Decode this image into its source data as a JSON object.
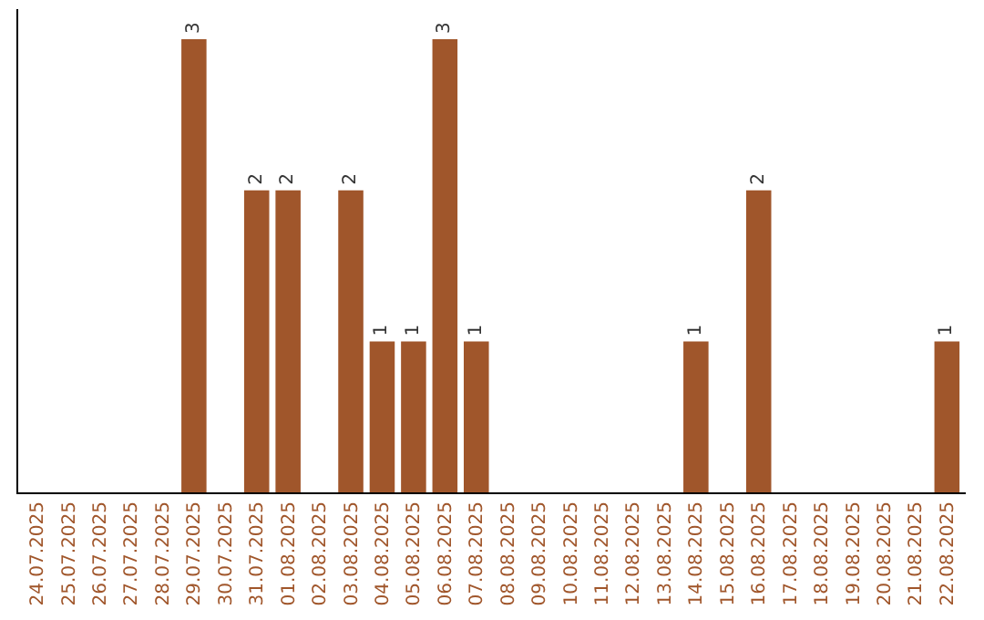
{
  "chart_data": {
    "type": "bar",
    "categories": [
      "24.07.2025",
      "25.07.2025",
      "26.07.2025",
      "27.07.2025",
      "28.07.2025",
      "29.07.2025",
      "30.07.2025",
      "31.07.2025",
      "01.08.2025",
      "02.08.2025",
      "03.08.2025",
      "04.08.2025",
      "05.08.2025",
      "06.08.2025",
      "07.08.2025",
      "08.08.2025",
      "09.08.2025",
      "10.08.2025",
      "11.08.2025",
      "12.08.2025",
      "13.08.2025",
      "14.08.2025",
      "15.08.2025",
      "16.08.2025",
      "17.08.2025",
      "18.08.2025",
      "19.08.2025",
      "20.08.2025",
      "21.08.2025",
      "22.08.2025"
    ],
    "values": [
      0,
      0,
      0,
      0,
      0,
      3,
      0,
      2,
      2,
      0,
      2,
      1,
      1,
      3,
      1,
      0,
      0,
      0,
      0,
      0,
      0,
      1,
      0,
      2,
      0,
      0,
      0,
      0,
      0,
      1
    ],
    "value_labels": [
      null,
      null,
      null,
      null,
      null,
      "3",
      null,
      "2",
      "2",
      null,
      "2",
      "1",
      "1",
      "3",
      "1",
      null,
      null,
      null,
      null,
      null,
      null,
      "1",
      null,
      "2",
      null,
      null,
      null,
      null,
      null,
      "1"
    ],
    "color": "#a0562b",
    "ylim": [
      0,
      3.2
    ],
    "tick_labels": "x",
    "legend": false
  }
}
